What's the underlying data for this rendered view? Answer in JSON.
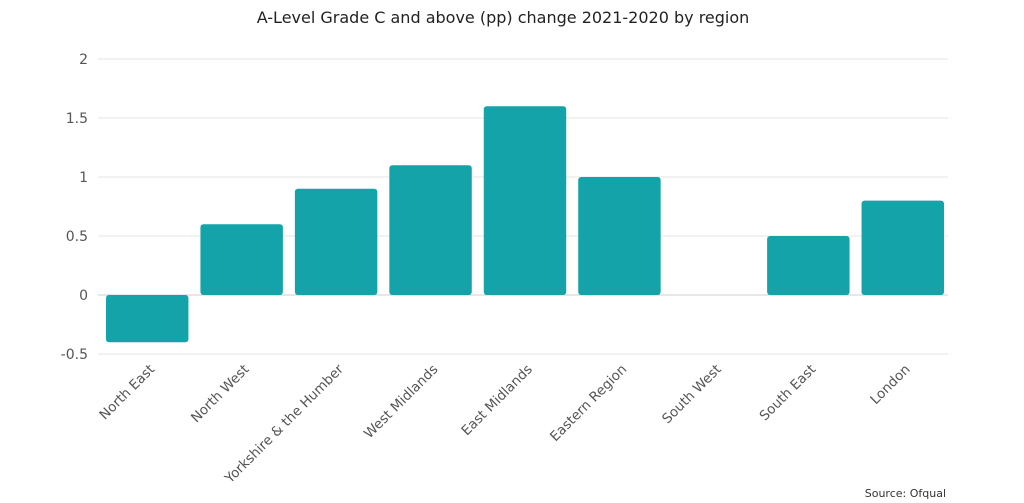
{
  "chart_data": {
    "type": "bar",
    "title": "A-Level Grade C and above (pp) change 2021-2020 by region",
    "categories": [
      "North East",
      "North West",
      "Yorkshire & the Humber",
      "West Midlands",
      "East Midlands",
      "Eastern Region",
      "South West",
      "South East",
      "London"
    ],
    "values": [
      -0.4,
      0.6,
      0.9,
      1.1,
      1.6,
      1.0,
      0,
      0.5,
      0.8
    ],
    "xlabel": "",
    "ylabel": "",
    "ylim": [
      -0.5,
      2
    ],
    "yticks": [
      2,
      1.5,
      1,
      0.5,
      0,
      -0.5
    ],
    "ytick_labels": [
      "2",
      "1.5",
      "1",
      "0.5",
      "0",
      "-0.5"
    ],
    "grid": true,
    "bar_color": "#14a3a8",
    "source": "Source: Ofqual"
  }
}
